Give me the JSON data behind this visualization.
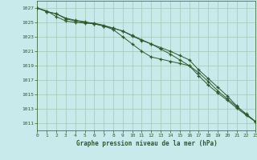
{
  "title": "Graphe pression niveau de la mer (hPa)",
  "bg_color": "#c8eaea",
  "grid_color": "#a0c8b8",
  "line_color": "#2d5a2d",
  "xlim": [
    0,
    23
  ],
  "ylim": [
    1010,
    1028
  ],
  "yticks": [
    1011,
    1013,
    1015,
    1017,
    1019,
    1021,
    1023,
    1025,
    1027
  ],
  "xticks": [
    0,
    1,
    2,
    3,
    4,
    5,
    6,
    7,
    8,
    9,
    10,
    11,
    12,
    13,
    14,
    15,
    16,
    17,
    18,
    19,
    20,
    21,
    22,
    23
  ],
  "series1": [
    1027,
    1026.5,
    1026.2,
    1025.5,
    1025.2,
    1025.0,
    1024.9,
    1024.6,
    1024.2,
    1023.8,
    1023.2,
    1022.6,
    1022.0,
    1021.3,
    1020.6,
    1019.8,
    1019.0,
    1017.6,
    1016.3,
    1015.2,
    1014.2,
    1013.1,
    1012.1,
    1011.2
  ],
  "series2": [
    1027,
    1026.6,
    1025.8,
    1025.2,
    1025.0,
    1024.9,
    1024.8,
    1024.5,
    1024.0,
    1023.0,
    1022.0,
    1021.0,
    1020.2,
    1019.9,
    1019.6,
    1019.3,
    1019.0,
    1018.0,
    1016.8,
    1015.5,
    1014.4,
    1013.3,
    1012.3,
    1011.2
  ],
  "series3": [
    1027,
    1026.5,
    1026.2,
    1025.6,
    1025.3,
    1025.1,
    1024.8,
    1024.5,
    1024.2,
    1023.8,
    1023.1,
    1022.5,
    1022.0,
    1021.5,
    1021.0,
    1020.4,
    1019.8,
    1018.4,
    1017.2,
    1016.0,
    1014.8,
    1013.4,
    1012.2,
    1011.2
  ]
}
